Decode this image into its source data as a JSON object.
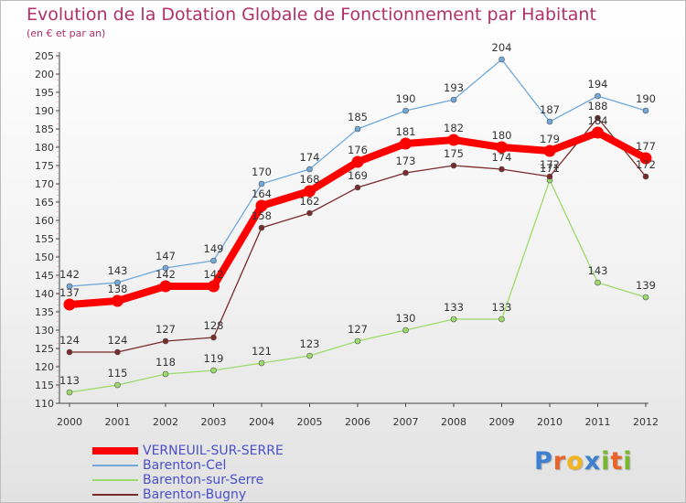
{
  "header": {
    "title": "Evolution de la Dotation Globale de Fonctionnement par Habitant",
    "subtitle": "(en € et par an)"
  },
  "chart_data": {
    "type": "line",
    "title": "Evolution de la Dotation Globale de Fonctionnement par Habitant",
    "subtitle": "(en € et par an)",
    "xlabel": "",
    "ylabel": "",
    "x": [
      "2000",
      "2001",
      "2002",
      "2003",
      "2004",
      "2005",
      "2006",
      "2007",
      "2008",
      "2009",
      "2010",
      "2011",
      "2012"
    ],
    "ylim": [
      110,
      205
    ],
    "yticks": [
      110,
      115,
      120,
      125,
      130,
      135,
      140,
      145,
      150,
      155,
      160,
      165,
      170,
      175,
      180,
      185,
      190,
      195,
      200,
      205
    ],
    "grid": false,
    "legend_position": "bottom-left",
    "series": [
      {
        "name": "VERNEUIL-SUR-SERRE",
        "color": "#ff0000",
        "values": [
          137,
          138,
          142,
          142,
          164,
          168,
          176,
          181,
          182,
          180,
          179,
          184,
          177
        ]
      },
      {
        "name": "Barenton-Cel",
        "color": "#6fa8dc",
        "values": [
          142,
          143,
          147,
          149,
          170,
          174,
          185,
          190,
          193,
          204,
          187,
          194,
          190
        ]
      },
      {
        "name": "Barenton-sur-Serre",
        "color": "#9bdb6a",
        "values": [
          113,
          115,
          118,
          119,
          121,
          123,
          127,
          130,
          133,
          133,
          171,
          143,
          139
        ]
      },
      {
        "name": "Barenton-Bugny",
        "color": "#7a2a2a",
        "values": [
          124,
          124,
          127,
          128,
          158,
          162,
          169,
          173,
          175,
          174,
          172,
          188,
          172
        ]
      }
    ]
  },
  "logo": {
    "letters": [
      "P",
      "r",
      "o",
      "x",
      "i",
      "t",
      "i"
    ],
    "colors": [
      "#3d7fd1",
      "#e8632a",
      "#f2b420",
      "#3d7fd1",
      "#79b72e",
      "#e8632a",
      "#79b72e"
    ]
  }
}
